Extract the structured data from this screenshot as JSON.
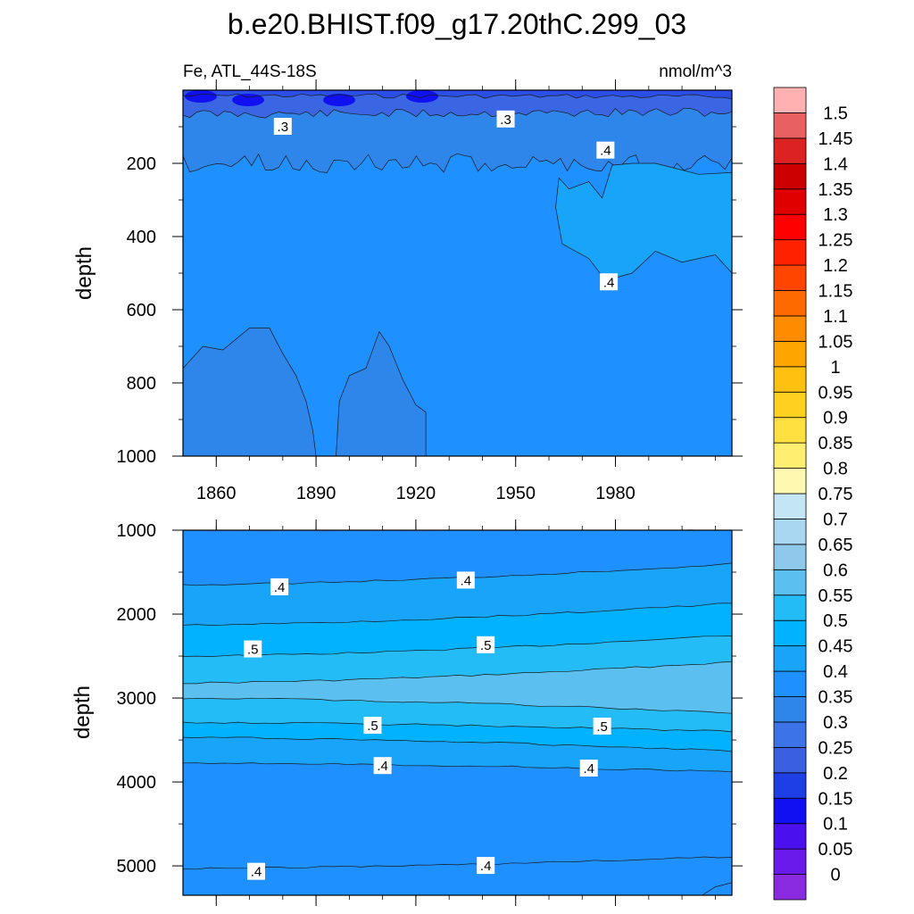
{
  "chart_data": {
    "type": "heatmap",
    "title": "b.e20.BHIST.f09_g17.20thC.299_03",
    "left_label": "Fe, ATL_44S-18S",
    "units": "nmol/m^3",
    "colorbar": {
      "levels": [
        "0",
        "0.05",
        "0.1",
        "0.15",
        "0.2",
        "0.25",
        "0.3",
        "0.35",
        "0.4",
        "0.45",
        "0.5",
        "0.55",
        "0.6",
        "0.65",
        "0.7",
        "0.75",
        "0.8",
        "0.85",
        "0.9",
        "0.95",
        "1",
        "1.05",
        "1.1",
        "1.15",
        "1.2",
        "1.25",
        "1.3",
        "1.35",
        "1.4",
        "1.45",
        "1.5"
      ],
      "colors": [
        "#8a2be2",
        "#6a1aea",
        "#4a10ee",
        "#1010f0",
        "#1f3fe6",
        "#3a5fe0",
        "#3c74e8",
        "#2e86ea",
        "#1e90ff",
        "#18a4f8",
        "#00b2ff",
        "#24bcf7",
        "#5bbff0",
        "#8ec9ec",
        "#a9d6f0",
        "#c4e5f5",
        "#fff8b0",
        "#ffee70",
        "#ffe040",
        "#ffd020",
        "#ffc010",
        "#ffa500",
        "#ff8c00",
        "#ff6a00",
        "#ff4500",
        "#ff2200",
        "#ff0000",
        "#e00000",
        "#cc0000",
        "#dd2222",
        "#e86060",
        "#ffb0b0"
      ]
    },
    "top_panel": {
      "xlim": [
        1850,
        2015
      ],
      "ylim": [
        1000,
        0
      ],
      "ylabel": "depth",
      "xticks": [
        "1860",
        "1890",
        "1920",
        "1950",
        "1980"
      ],
      "yticks": [
        "200",
        "400",
        "600",
        "800",
        "1000"
      ],
      "contour_labels": [
        {
          "text": ".3",
          "year": 1880,
          "depth": 100
        },
        {
          "text": ".3",
          "year": 1947,
          "depth": 80
        },
        {
          "text": ".4",
          "year": 1977,
          "depth": 165
        },
        {
          "text": ".4",
          "year": 1978,
          "depth": 525
        }
      ]
    },
    "bottom_panel": {
      "ylim": [
        5350,
        1000
      ],
      "ylabel": "depth",
      "yticks": [
        "1000",
        "2000",
        "3000",
        "4000",
        "5000"
      ],
      "contour_labels": [
        {
          "text": ".4",
          "year": 1879,
          "depth": 1680
        },
        {
          "text": ".4",
          "year": 1935,
          "depth": 1600
        },
        {
          "text": ".5",
          "year": 1871,
          "depth": 2420
        },
        {
          "text": ".5",
          "year": 1941,
          "depth": 2370
        },
        {
          "text": ".5",
          "year": 1907,
          "depth": 3330
        },
        {
          "text": ".5",
          "year": 1976,
          "depth": 3340
        },
        {
          "text": ".4",
          "year": 1910,
          "depth": 3810
        },
        {
          "text": ".4",
          "year": 1972,
          "depth": 3840
        },
        {
          "text": ".4",
          "year": 1872,
          "depth": 5070
        },
        {
          "text": ".4",
          "year": 1941,
          "depth": 5000
        }
      ]
    }
  }
}
